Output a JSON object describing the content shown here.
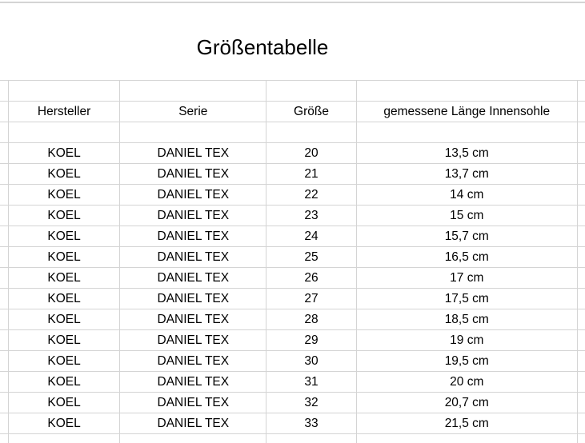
{
  "title": "Größentabelle",
  "headers": [
    "Hersteller",
    "Serie",
    "Größe",
    "gemessene Länge Innensohle"
  ],
  "rows": [
    [
      "KOEL",
      "DANIEL TEX",
      "20",
      "13,5 cm"
    ],
    [
      "KOEL",
      "DANIEL TEX",
      "21",
      "13,7 cm"
    ],
    [
      "KOEL",
      "DANIEL TEX",
      "22",
      "14 cm"
    ],
    [
      "KOEL",
      "DANIEL TEX",
      "23",
      "15 cm"
    ],
    [
      "KOEL",
      "DANIEL TEX",
      "24",
      "15,7 cm"
    ],
    [
      "KOEL",
      "DANIEL TEX",
      "25",
      "16,5 cm"
    ],
    [
      "KOEL",
      "DANIEL TEX",
      "26",
      "17 cm"
    ],
    [
      "KOEL",
      "DANIEL TEX",
      "27",
      "17,5 cm"
    ],
    [
      "KOEL",
      "DANIEL TEX",
      "28",
      "18,5 cm"
    ],
    [
      "KOEL",
      "DANIEL TEX",
      "29",
      "19 cm"
    ],
    [
      "KOEL",
      "DANIEL TEX",
      "30",
      "19,5 cm"
    ],
    [
      "KOEL",
      "DANIEL TEX",
      "31",
      "20 cm"
    ],
    [
      "KOEL",
      "DANIEL TEX",
      "32",
      "20,7 cm"
    ],
    [
      "KOEL",
      "DANIEL TEX",
      "33",
      "21,5 cm"
    ]
  ]
}
